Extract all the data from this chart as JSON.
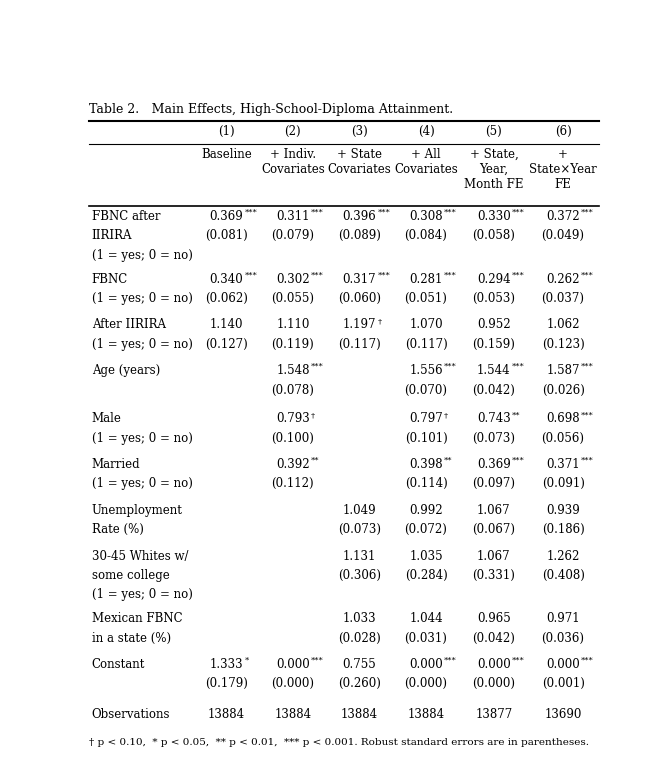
{
  "title": "Table 2. Main Effects, High-School-Diploma Attainment.",
  "col_headers_line1": [
    "(1)",
    "(2)",
    "(3)",
    "(4)",
    "(5)",
    "(6)"
  ],
  "col_headers_line2": [
    "Baseline",
    "+ Indiv.\nCovariates",
    "+ State\nCovariates",
    "+ All\nCovariates",
    "+ State,\nYear,\nMonth FE",
    "+\nState×Year\nFE"
  ],
  "rows": [
    {
      "label": "FBNC after\nIIRIRA\n(1 = yes; 0 = no)",
      "values": [
        "0.369***",
        "0.311***",
        "0.396***",
        "0.308***",
        "0.330***",
        "0.372***"
      ],
      "se": [
        "(0.081)",
        "(0.079)",
        "(0.089)",
        "(0.084)",
        "(0.058)",
        "(0.049)"
      ]
    },
    {
      "label": "FBNC\n(1 = yes; 0 = no)",
      "values": [
        "0.340***",
        "0.302***",
        "0.317***",
        "0.281***",
        "0.294***",
        "0.262***"
      ],
      "se": [
        "(0.062)",
        "(0.055)",
        "(0.060)",
        "(0.051)",
        "(0.053)",
        "(0.037)"
      ]
    },
    {
      "label": "After IIRIRA\n(1 = yes; 0 = no)",
      "values": [
        "1.140",
        "1.110",
        "1.197†",
        "1.070",
        "0.952",
        "1.062"
      ],
      "se": [
        "(0.127)",
        "(0.119)",
        "(0.117)",
        "(0.117)",
        "(0.159)",
        "(0.123)"
      ]
    },
    {
      "label": "Age (years)",
      "values": [
        "",
        "1.548***",
        "",
        "1.556***",
        "1.544***",
        "1.587***"
      ],
      "se": [
        "",
        "(0.078)",
        "",
        "(0.070)",
        "(0.042)",
        "(0.026)"
      ]
    },
    {
      "label": "Male\n(1 = yes; 0 = no)",
      "values": [
        "",
        "0.793†",
        "",
        "0.797†",
        "0.743**",
        "0.698***"
      ],
      "se": [
        "",
        "(0.100)",
        "",
        "(0.101)",
        "(0.073)",
        "(0.056)"
      ]
    },
    {
      "label": "Married\n(1 = yes; 0 = no)",
      "values": [
        "",
        "0.392**",
        "",
        "0.398**",
        "0.369***",
        "0.371***"
      ],
      "se": [
        "",
        "(0.112)",
        "",
        "(0.114)",
        "(0.097)",
        "(0.091)"
      ]
    },
    {
      "label": "Unemployment\nRate (%)",
      "values": [
        "",
        "",
        "1.049",
        "0.992",
        "1.067",
        "0.939"
      ],
      "se": [
        "",
        "",
        "(0.073)",
        "(0.072)",
        "(0.067)",
        "(0.186)"
      ]
    },
    {
      "label": "30-45 Whites w/\nsome college\n(1 = yes; 0 = no)",
      "values": [
        "",
        "",
        "1.131",
        "1.035",
        "1.067",
        "1.262"
      ],
      "se": [
        "",
        "",
        "(0.306)",
        "(0.284)",
        "(0.331)",
        "(0.408)"
      ]
    },
    {
      "label": "Mexican FBNC\nin a state (%)",
      "values": [
        "",
        "",
        "1.033",
        "1.044",
        "0.965",
        "0.971"
      ],
      "se": [
        "",
        "",
        "(0.028)",
        "(0.031)",
        "(0.042)",
        "(0.036)"
      ]
    },
    {
      "label": "Constant",
      "values": [
        "1.333*",
        "0.000***",
        "0.755",
        "0.000***",
        "0.000***",
        "0.000***"
      ],
      "se": [
        "(0.179)",
        "(0.000)",
        "(0.260)",
        "(0.000)",
        "(0.000)",
        "(0.001)"
      ]
    }
  ],
  "observations": [
    "13884",
    "13884",
    "13884",
    "13884",
    "13877",
    "13690"
  ],
  "footnote": "† p < 0.10,  * p < 0.05,  ** p < 0.01,  *** p < 0.001. Robust standard errors are in parentheses.",
  "bg_color": "#ffffff",
  "text_color": "#000000",
  "font_size": 8.5
}
